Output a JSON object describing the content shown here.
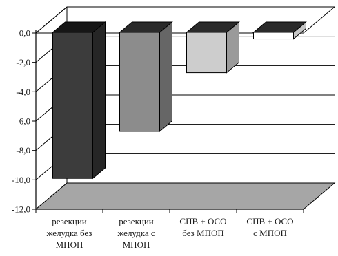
{
  "chart_data": {
    "type": "bar",
    "title": "",
    "xlabel": "",
    "ylabel": "",
    "ylim": [
      -12,
      0
    ],
    "y_ticks": [
      0,
      -2,
      -4,
      -6,
      -8,
      -10,
      -12
    ],
    "y_tick_labels": [
      "0,0",
      "-2,0",
      "-4,0",
      "-6,0",
      "-8,0",
      "-10,0",
      "-12,0"
    ],
    "grid": true,
    "three_d": true,
    "categories": [
      [
        "резекции",
        "желудка без",
        "МПОП"
      ],
      [
        "резекции",
        "желудка с",
        "МПОП"
      ],
      [
        "СПВ + ОСО",
        "без МПОП"
      ],
      [
        "СПВ + ОСО",
        "с МПОП"
      ]
    ],
    "values": [
      -9.9,
      -6.7,
      -2.7,
      -0.4
    ],
    "colors": {
      "bars": [
        {
          "front": "#3c3c3c",
          "side": "#262626",
          "top": "#161616"
        },
        {
          "front": "#8c8c8c",
          "side": "#666666",
          "top": "#2a2a2a"
        },
        {
          "front": "#cdcdcd",
          "side": "#9a9a9a",
          "top": "#2a2a2a"
        },
        {
          "front": "#ffffff",
          "side": "#c4c4c4",
          "top": "#2a2a2a"
        }
      ],
      "floor": "#a6a6a6",
      "grid": "#000000"
    }
  }
}
